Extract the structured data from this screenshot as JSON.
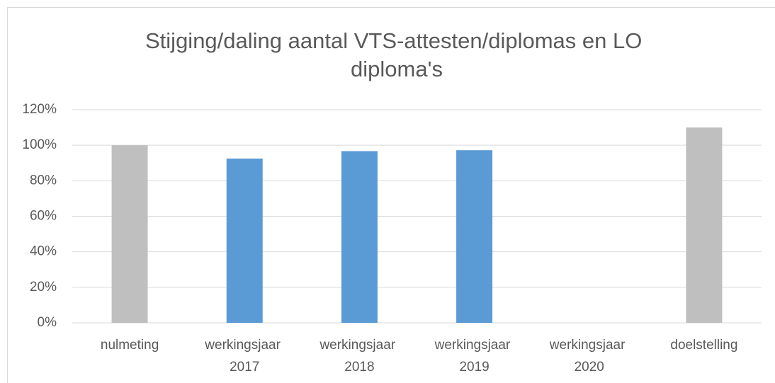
{
  "chart_data": {
    "type": "bar",
    "title": "Stijging/daling aantal VTS-attesten/diplomas en LO diploma's",
    "categories": [
      "nulmeting",
      "werkingsjaar 2017",
      "werkingsjaar 2018",
      "werkingsjaar 2019",
      "werkingsjaar 2020",
      "doelstelling"
    ],
    "values": [
      100,
      92.5,
      96.7,
      97.2,
      null,
      110
    ],
    "colors": [
      "#bfbfbf",
      "#5b9bd5",
      "#5b9bd5",
      "#5b9bd5",
      "#5b9bd5",
      "#bfbfbf"
    ],
    "ylim": [
      0,
      120
    ],
    "yticks": [
      {
        "value": 0,
        "label": "0%"
      },
      {
        "value": 20,
        "label": "20%"
      },
      {
        "value": 40,
        "label": "40%"
      },
      {
        "value": 60,
        "label": "60%"
      },
      {
        "value": 80,
        "label": "80%"
      },
      {
        "value": 100,
        "label": "100%"
      },
      {
        "value": 120,
        "label": "120%"
      }
    ],
    "grid": true
  }
}
